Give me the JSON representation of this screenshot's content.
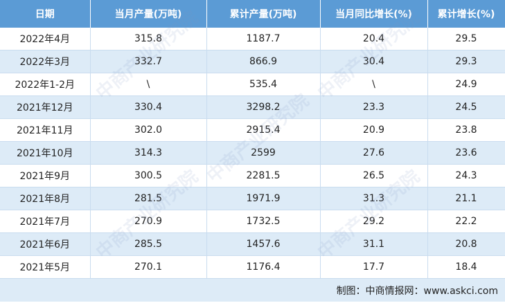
{
  "table": {
    "header": [
      "日期",
      "当月产量(万吨)",
      "累计产量(万吨)",
      "当月同比增长(%)",
      "累计增长(%)"
    ],
    "rows": [
      [
        "2022年4月",
        "315.8",
        "1187.7",
        "20.4",
        "29.5"
      ],
      [
        "2022年3月",
        "332.7",
        "866.9",
        "30.4",
        "29.3"
      ],
      [
        "2022年1-2月",
        "\\",
        "535.4",
        "\\",
        "24.9"
      ],
      [
        "2021年12月",
        "330.4",
        "3298.2",
        "23.3",
        "24.5"
      ],
      [
        "2021年11月",
        "302.0",
        "2915.4",
        "20.9",
        "23.8"
      ],
      [
        "2021年10月",
        "314.3",
        "2599",
        "27.6",
        "23.6"
      ],
      [
        "2021年9月",
        "300.5",
        "2281.5",
        "26.5",
        "24.3"
      ],
      [
        "2021年8月",
        "281.5",
        "1971.9",
        "31.3",
        "21.1"
      ],
      [
        "2021年7月",
        "270.9",
        "1732.5",
        "29.2",
        "22.2"
      ],
      [
        "2021年6月",
        "285.5",
        "1457.6",
        "31.1",
        "20.8"
      ],
      [
        "2021年5月",
        "270.1",
        "1176.4",
        "17.7",
        "18.4"
      ]
    ],
    "footer": "制图：中商情报网：www.askci.com"
  },
  "watermark": "中商产业研究院"
}
